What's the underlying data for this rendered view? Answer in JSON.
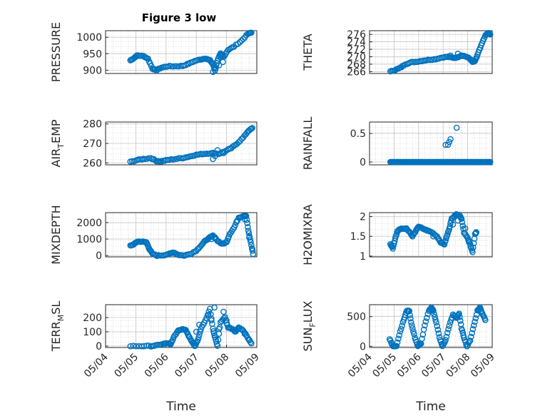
{
  "figure": {
    "title": "Figure 3 low"
  },
  "colors": {
    "series": "#0072BD",
    "axis": "#262626",
    "grid": "#c6c6c6"
  },
  "chart_data": [
    {
      "type": "scatter",
      "id": "pressure",
      "ylabel": "PRESSURE",
      "title": "Figure 3 low",
      "xlim": [
        0,
        5
      ],
      "ylim": [
        890,
        1020
      ],
      "yticks": [
        900,
        950,
        1000
      ],
      "ytick_labels": [
        "900",
        "950",
        "1000"
      ],
      "xticks": [],
      "xtick_labels": [],
      "xlabel": "",
      "grid": true,
      "minor_grid": true,
      "anchors": [
        [
          0.82,
          930
        ],
        [
          0.95,
          938
        ],
        [
          1.05,
          945
        ],
        [
          1.25,
          943
        ],
        [
          1.4,
          935
        ],
        [
          1.55,
          905
        ],
        [
          1.68,
          900
        ],
        [
          1.85,
          908
        ],
        [
          2.05,
          912
        ],
        [
          2.3,
          912
        ],
        [
          2.55,
          913
        ],
        [
          2.75,
          920
        ],
        [
          2.95,
          928
        ],
        [
          3.15,
          933
        ],
        [
          3.3,
          936
        ],
        [
          3.45,
          930
        ],
        [
          3.55,
          918
        ],
        [
          3.62,
          900
        ],
        [
          3.7,
          930
        ],
        [
          3.8,
          950
        ],
        [
          3.9,
          940
        ],
        [
          4.05,
          962
        ],
        [
          4.25,
          972
        ],
        [
          4.5,
          990
        ],
        [
          4.7,
          1010
        ],
        [
          4.82,
          1015
        ]
      ],
      "extra": [
        [
          3.55,
          895
        ],
        [
          3.62,
          905
        ],
        [
          3.75,
          915
        ],
        [
          3.82,
          945
        ],
        [
          3.88,
          925
        ]
      ]
    },
    {
      "type": "scatter",
      "id": "theta",
      "ylabel": "THETA",
      "xlim": [
        0,
        5
      ],
      "ylim": [
        265.5,
        277
      ],
      "yticks": [
        266,
        268,
        270,
        272,
        274,
        276
      ],
      "ytick_labels": [
        "266",
        "268",
        "270",
        "272",
        "274",
        "276"
      ],
      "xticks": [],
      "xtick_labels": [],
      "xlabel": "",
      "grid": true,
      "minor_grid": true,
      "anchors": [
        [
          0.85,
          266
        ],
        [
          1.05,
          266.5
        ],
        [
          1.25,
          267
        ],
        [
          1.45,
          268
        ],
        [
          1.7,
          268.5
        ],
        [
          1.95,
          268.7
        ],
        [
          2.2,
          269
        ],
        [
          2.45,
          269.2
        ],
        [
          2.7,
          269.4
        ],
        [
          2.95,
          269.8
        ],
        [
          3.2,
          270
        ],
        [
          3.4,
          269.7
        ],
        [
          3.55,
          269.8
        ],
        [
          3.75,
          270.4
        ],
        [
          3.95,
          270
        ],
        [
          4.1,
          269.4
        ],
        [
          4.2,
          268.6
        ],
        [
          4.3,
          268.8
        ],
        [
          4.4,
          270.5
        ],
        [
          4.55,
          273
        ],
        [
          4.7,
          275.5
        ],
        [
          4.82,
          276.4
        ],
        [
          4.92,
          276
        ]
      ],
      "extra": [
        [
          3.6,
          270.8
        ],
        [
          3.3,
          270.3
        ]
      ]
    },
    {
      "type": "scatter",
      "id": "air_temp",
      "ylabel": "AIR_TEMP",
      "ylabel_display": {
        "main": "AIR",
        "sub": "T",
        "rest": "EMP"
      },
      "xlim": [
        0,
        5
      ],
      "ylim": [
        259,
        281
      ],
      "yticks": [
        260,
        270,
        280
      ],
      "ytick_labels": [
        "260",
        "270",
        "280"
      ],
      "xticks": [],
      "xtick_labels": [],
      "xlabel": "",
      "grid": true,
      "minor_grid": true,
      "anchors": [
        [
          0.82,
          260.5
        ],
        [
          1.05,
          261.5
        ],
        [
          1.25,
          262
        ],
        [
          1.5,
          262.5
        ],
        [
          1.68,
          261
        ],
        [
          1.85,
          260.8
        ],
        [
          2.05,
          261.5
        ],
        [
          2.3,
          262
        ],
        [
          2.55,
          262.5
        ],
        [
          2.75,
          263.2
        ],
        [
          2.95,
          264
        ],
        [
          3.15,
          264.5
        ],
        [
          3.35,
          264.8
        ],
        [
          3.55,
          265
        ],
        [
          3.75,
          264.7
        ],
        [
          3.95,
          266
        ],
        [
          4.15,
          267.5
        ],
        [
          4.35,
          270
        ],
        [
          4.55,
          273
        ],
        [
          4.72,
          276.5
        ],
        [
          4.85,
          277.8
        ]
      ],
      "extra": [
        [
          3.55,
          262
        ],
        [
          3.62,
          263.5
        ],
        [
          3.7,
          266.5
        ],
        [
          3.9,
          265
        ]
      ]
    },
    {
      "type": "scatter",
      "id": "rainfall",
      "ylabel": "RAINFALL",
      "xlim": [
        0,
        5
      ],
      "ylim": [
        -0.05,
        0.7
      ],
      "yticks": [
        0,
        0.5
      ],
      "ytick_labels": [
        "0",
        "0.5"
      ],
      "xticks": [],
      "xtick_labels": [],
      "xlabel": "",
      "grid": true,
      "minor_grid": true,
      "anchors": [
        [
          0.85,
          0
        ],
        [
          1.5,
          0
        ],
        [
          2.2,
          0
        ],
        [
          2.9,
          0
        ],
        [
          3.6,
          0
        ],
        [
          4.3,
          0
        ],
        [
          4.92,
          0
        ]
      ],
      "extra": [
        [
          3.1,
          0.3
        ],
        [
          3.2,
          0.3
        ],
        [
          3.25,
          0.35
        ],
        [
          3.3,
          0.4
        ],
        [
          3.55,
          0.6
        ],
        [
          3.15,
          0
        ]
      ]
    },
    {
      "type": "scatter",
      "id": "mixdepth",
      "ylabel": "MIXDEPTH",
      "xlim": [
        0,
        5
      ],
      "ylim": [
        -80,
        2600
      ],
      "yticks": [
        0,
        1000,
        2000
      ],
      "ytick_labels": [
        "0",
        "1000",
        "2000"
      ],
      "xticks": [],
      "xtick_labels": [],
      "xlabel": "",
      "grid": true,
      "minor_grid": true,
      "anchors": [
        [
          0.82,
          600
        ],
        [
          0.95,
          700
        ],
        [
          1.05,
          850
        ],
        [
          1.2,
          850
        ],
        [
          1.35,
          800
        ],
        [
          1.45,
          400
        ],
        [
          1.55,
          100
        ],
        [
          1.7,
          0
        ],
        [
          1.9,
          20
        ],
        [
          2.1,
          100
        ],
        [
          2.25,
          200
        ],
        [
          2.4,
          50
        ],
        [
          2.6,
          0
        ],
        [
          2.8,
          100
        ],
        [
          3.0,
          300
        ],
        [
          3.15,
          600
        ],
        [
          3.3,
          900
        ],
        [
          3.45,
          1100
        ],
        [
          3.55,
          1200
        ],
        [
          3.7,
          900
        ],
        [
          3.85,
          700
        ],
        [
          4.0,
          800
        ],
        [
          4.1,
          1300
        ],
        [
          4.25,
          1700
        ],
        [
          4.4,
          2300
        ],
        [
          4.55,
          2400
        ],
        [
          4.65,
          2400
        ],
        [
          4.72,
          1500
        ],
        [
          4.8,
          800
        ],
        [
          4.88,
          100
        ]
      ],
      "extra": [
        [
          3.62,
          1100
        ],
        [
          3.9,
          750
        ],
        [
          4.35,
          2100
        ],
        [
          4.6,
          2200
        ],
        [
          4.75,
          1100
        ],
        [
          4.85,
          400
        ],
        [
          3.5,
          1000
        ]
      ]
    },
    {
      "type": "scatter",
      "id": "h2omixra",
      "ylabel": "H2OMIXRA",
      "xlim": [
        0,
        5
      ],
      "ylim": [
        0.98,
        2.1
      ],
      "yticks": [
        1,
        1.5,
        2
      ],
      "ytick_labels": [
        "1",
        "1.5",
        "2"
      ],
      "xticks": [],
      "xtick_labels": [],
      "xlabel": "",
      "grid": true,
      "minor_grid": true,
      "anchors": [
        [
          0.85,
          1.3
        ],
        [
          0.95,
          1.2
        ],
        [
          1.05,
          1.45
        ],
        [
          1.15,
          1.65
        ],
        [
          1.3,
          1.7
        ],
        [
          1.5,
          1.7
        ],
        [
          1.65,
          1.6
        ],
        [
          1.75,
          1.5
        ],
        [
          1.9,
          1.65
        ],
        [
          2.0,
          1.75
        ],
        [
          2.15,
          1.7
        ],
        [
          2.35,
          1.65
        ],
        [
          2.55,
          1.6
        ],
        [
          2.75,
          1.5
        ],
        [
          2.9,
          1.35
        ],
        [
          3.05,
          1.3
        ],
        [
          3.15,
          1.5
        ],
        [
          3.25,
          1.7
        ],
        [
          3.35,
          1.95
        ],
        [
          3.5,
          2.05
        ],
        [
          3.65,
          2.05
        ],
        [
          3.75,
          1.95
        ],
        [
          3.85,
          1.6
        ],
        [
          4.0,
          1.45
        ],
        [
          4.1,
          1.3
        ],
        [
          4.2,
          1.1
        ],
        [
          4.3,
          1.55
        ],
        [
          4.35,
          1.6
        ]
      ],
      "extra": [
        [
          2.6,
          1.5
        ],
        [
          3.4,
          1.8
        ],
        [
          3.6,
          1.9
        ],
        [
          3.9,
          1.7
        ],
        [
          4.05,
          1.35
        ]
      ]
    },
    {
      "type": "scatter",
      "id": "terr_msl",
      "ylabel": "TERR_MSL",
      "ylabel_display": {
        "main": "TERR",
        "sub": "M",
        "rest": "SL"
      },
      "xlim": [
        0,
        5
      ],
      "ylim": [
        -10,
        290
      ],
      "yticks": [
        0,
        100,
        200
      ],
      "ytick_labels": [
        "0",
        "100",
        "200"
      ],
      "xticks": [
        0,
        1,
        2,
        3,
        4,
        5
      ],
      "xtick_labels": [
        "05/04",
        "05/05",
        "05/06",
        "05/07",
        "05/08",
        "05/09"
      ],
      "xlabel": "Time",
      "grid": true,
      "minor_grid": true,
      "anchors": [
        [
          0.82,
          0
        ],
        [
          1.2,
          0
        ],
        [
          1.5,
          0
        ],
        [
          1.7,
          5
        ],
        [
          1.9,
          15
        ],
        [
          2.05,
          20
        ],
        [
          2.15,
          10
        ],
        [
          2.25,
          60
        ],
        [
          2.4,
          110
        ],
        [
          2.55,
          120
        ],
        [
          2.65,
          115
        ],
        [
          2.75,
          70
        ],
        [
          2.85,
          35
        ],
        [
          2.95,
          0
        ],
        [
          3.05,
          40
        ],
        [
          3.15,
          120
        ],
        [
          3.3,
          180
        ],
        [
          3.45,
          260
        ],
        [
          3.55,
          120
        ],
        [
          3.62,
          60
        ],
        [
          3.7,
          0
        ],
        [
          3.8,
          170
        ],
        [
          3.95,
          200
        ],
        [
          4.05,
          130
        ],
        [
          4.2,
          120
        ],
        [
          4.3,
          100
        ],
        [
          4.4,
          130
        ],
        [
          4.55,
          110
        ],
        [
          4.7,
          60
        ],
        [
          4.82,
          20
        ]
      ],
      "extra": [
        [
          3.0,
          100
        ],
        [
          3.1,
          150
        ],
        [
          3.4,
          220
        ],
        [
          3.5,
          180
        ],
        [
          3.6,
          270
        ],
        [
          3.75,
          120
        ],
        [
          3.9,
          240
        ],
        [
          4.0,
          180
        ],
        [
          4.6,
          85
        ],
        [
          4.75,
          40
        ]
      ]
    },
    {
      "type": "scatter",
      "id": "sun_flux",
      "ylabel": "SUN_FLUX",
      "ylabel_display": {
        "main": "SUN",
        "sub": "F",
        "rest": "LUX"
      },
      "xlim": [
        0,
        5
      ],
      "ylim": [
        -20,
        700
      ],
      "yticks": [
        0,
        500
      ],
      "ytick_labels": [
        "0",
        "500"
      ],
      "xticks": [
        0,
        1,
        2,
        3,
        4,
        5
      ],
      "xtick_labels": [
        "05/04",
        "05/05",
        "05/06",
        "05/07",
        "05/08",
        "05/09"
      ],
      "xlabel": "Time",
      "grid": true,
      "minor_grid": true,
      "anchors": [
        [
          0.82,
          120
        ],
        [
          0.95,
          0
        ],
        [
          1.1,
          10
        ],
        [
          1.25,
          250
        ],
        [
          1.4,
          450
        ],
        [
          1.52,
          600
        ],
        [
          1.62,
          590
        ],
        [
          1.72,
          350
        ],
        [
          1.85,
          150
        ],
        [
          1.97,
          0
        ],
        [
          2.1,
          50
        ],
        [
          2.25,
          350
        ],
        [
          2.42,
          600
        ],
        [
          2.52,
          650
        ],
        [
          2.6,
          600
        ],
        [
          2.72,
          400
        ],
        [
          2.85,
          150
        ],
        [
          2.97,
          0
        ],
        [
          3.1,
          100
        ],
        [
          3.25,
          350
        ],
        [
          3.4,
          530
        ],
        [
          3.55,
          480
        ],
        [
          3.65,
          550
        ],
        [
          3.75,
          300
        ],
        [
          3.85,
          150
        ],
        [
          3.97,
          0
        ],
        [
          4.1,
          100
        ],
        [
          4.25,
          350
        ],
        [
          4.4,
          600
        ],
        [
          4.5,
          650
        ],
        [
          4.6,
          550
        ],
        [
          4.72,
          450
        ]
      ]
    }
  ]
}
